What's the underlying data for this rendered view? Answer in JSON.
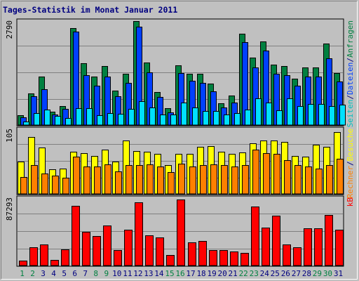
{
  "chart_data": {
    "type": "bar",
    "title": "Tages-Statistik im Monat Januar 2011",
    "days": [
      "1",
      "2",
      "3",
      "4",
      "5",
      "6",
      "7",
      "8",
      "9",
      "10",
      "11",
      "12",
      "13",
      "14",
      "15",
      "16",
      "17",
      "18",
      "19",
      "20",
      "21",
      "22",
      "23",
      "24",
      "25",
      "26",
      "27",
      "28",
      "29",
      "30",
      "31"
    ],
    "weekend_days": [
      "1",
      "2",
      "8",
      "9",
      "15",
      "16",
      "22",
      "23",
      "29",
      "30"
    ],
    "panels": [
      {
        "name": "requests",
        "ymax_label": "2790",
        "ymax": 2790,
        "legend": [
          "Seiten",
          "/",
          "Dateien",
          "/",
          "Anfragen"
        ],
        "legend_colors": [
          "#00c0c0",
          "#000080",
          "#0040ff",
          "#000080",
          "#008040"
        ],
        "series": [
          {
            "name": "Anfragen",
            "color": "#008040",
            "values": [
              270,
              850,
              1300,
              350,
              500,
              2600,
              1650,
              1300,
              1580,
              930,
              1380,
              2790,
              1680,
              880,
              450,
              1600,
              1370,
              1370,
              1110,
              580,
              790,
              2450,
              1810,
              2250,
              1620,
              1580,
              1250,
              1550,
              1550,
              2180,
              1400
            ]
          },
          {
            "name": "Dateien",
            "color": "#0040ff",
            "values": [
              210,
              770,
              970,
              280,
              430,
              2500,
              1330,
              1060,
              1300,
              780,
              1130,
              2640,
              1420,
              750,
              340,
              1390,
              1180,
              1140,
              900,
              480,
              600,
              2230,
              1540,
              2000,
              1370,
              1340,
              1060,
              1310,
              1310,
              1800,
              1170
            ]
          },
          {
            "name": "Seiten",
            "color": "#00e0ff",
            "values": [
              100,
              320,
              420,
              240,
              180,
              460,
              460,
              270,
              320,
              300,
              430,
              640,
              480,
              290,
              280,
              600,
              470,
              380,
              370,
              280,
              320,
              410,
              720,
              600,
              400,
              720,
              500,
              560,
              570,
              500,
              550
            ]
          }
        ]
      },
      {
        "name": "visits",
        "ymax_label": "105",
        "ymax": 105,
        "legend": [
          "Rechner",
          "/",
          "Besuche"
        ],
        "legend_colors": [
          "#ff8000",
          "#000080",
          "#ffff00"
        ],
        "series": [
          {
            "name": "Besuche",
            "color": "#ffff00",
            "values": [
              52,
              92,
              75,
              40,
              41,
              68,
              66,
              62,
              72,
              52,
              87,
              70,
              68,
              65,
              47,
              65,
              65,
              77,
              78,
              68,
              65,
              67,
              82,
              87,
              87,
              85,
              62,
              60,
              80,
              76,
              100
            ]
          },
          {
            "name": "Rechner",
            "color": "#ff8000",
            "values": [
              27,
              47,
              33,
              30,
              26,
              61,
              45,
              45,
              48,
              37,
              47,
              47,
              48,
              45,
              35,
              49,
              45,
              47,
              48,
              47,
              45,
              47,
              72,
              66,
              65,
              55,
              47,
              45,
              41,
              47,
              57
            ]
          }
        ]
      },
      {
        "name": "kb",
        "ymax_label": "87293",
        "ymax": 87293,
        "legend": [
          "kB"
        ],
        "legend_colors": [
          "#ff0000"
        ],
        "series": [
          {
            "name": "kB",
            "color": "#ff0000",
            "values": [
              6500,
              24600,
              27800,
              7200,
              21500,
              79000,
              45000,
              38800,
              53000,
              20000,
              47000,
              83200,
              40000,
              36700,
              14000,
              87293,
              31000,
              32500,
              20800,
              20000,
              18800,
              16800,
              77800,
              49800,
              65800,
              28000,
              24600,
              49000,
              49000,
              66500,
              47000
            ]
          }
        ]
      }
    ]
  }
}
